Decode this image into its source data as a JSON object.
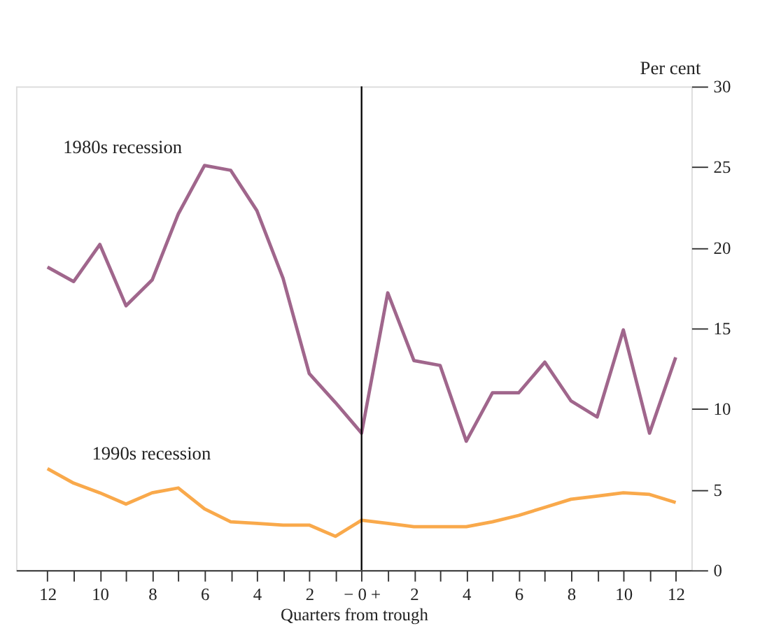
{
  "chart_data": {
    "type": "line",
    "xlabel": "Quarters from trough",
    "ylabel": "Per cent",
    "x": [
      -12,
      -11,
      -10,
      -9,
      -8,
      -7,
      -6,
      -5,
      -4,
      -3,
      -2,
      -1,
      0,
      1,
      2,
      3,
      4,
      5,
      6,
      7,
      8,
      9,
      10,
      11,
      12
    ],
    "series": [
      {
        "name": "1980s recession",
        "color": "#a0668c",
        "values": [
          18.8,
          17.9,
          20.2,
          16.4,
          18.0,
          22.1,
          25.1,
          24.8,
          22.3,
          18.1,
          12.2,
          10.4,
          8.5,
          17.2,
          13.0,
          12.7,
          8.0,
          11.0,
          11.0,
          12.9,
          10.5,
          9.5,
          14.9,
          8.5,
          13.2
        ]
      },
      {
        "name": "1990s recession",
        "color": "#f9a94b",
        "values": [
          6.3,
          5.4,
          4.8,
          4.1,
          4.8,
          5.1,
          3.8,
          3.0,
          2.9,
          2.8,
          2.8,
          2.1,
          3.1,
          2.9,
          2.7,
          2.7,
          2.7,
          3.0,
          3.4,
          3.9,
          4.4,
          4.6,
          4.8,
          4.7,
          4.2
        ]
      }
    ],
    "xlim": [
      -13.2,
      12.6
    ],
    "xticks": [
      {
        "value": -12,
        "label": "12"
      },
      {
        "value": -11,
        "label": null
      },
      {
        "value": -10,
        "label": "10"
      },
      {
        "value": -9,
        "label": null
      },
      {
        "value": -8,
        "label": "8"
      },
      {
        "value": -7,
        "label": null
      },
      {
        "value": -6,
        "label": "6"
      },
      {
        "value": -5,
        "label": null
      },
      {
        "value": -4,
        "label": "4"
      },
      {
        "value": -3,
        "label": null
      },
      {
        "value": -2,
        "label": "2"
      },
      {
        "value": -1,
        "label": null
      },
      {
        "value": 0,
        "label": "− 0 +"
      },
      {
        "value": 1,
        "label": null
      },
      {
        "value": 2,
        "label": "2"
      },
      {
        "value": 3,
        "label": null
      },
      {
        "value": 4,
        "label": "4"
      },
      {
        "value": 5,
        "label": null
      },
      {
        "value": 6,
        "label": "6"
      },
      {
        "value": 7,
        "label": null
      },
      {
        "value": 8,
        "label": "8"
      },
      {
        "value": 9,
        "label": null
      },
      {
        "value": 10,
        "label": "10"
      },
      {
        "value": 11,
        "label": null
      },
      {
        "value": 12,
        "label": "12"
      }
    ],
    "ylim": [
      0,
      30
    ],
    "yticks": [
      0,
      5,
      10,
      15,
      20,
      25,
      30
    ],
    "ref_lines": [
      {
        "axis": "x",
        "value": 0,
        "label": null,
        "color": "#000000"
      }
    ],
    "grid": false,
    "legend": false,
    "marker": "none",
    "line_style": "solid"
  }
}
